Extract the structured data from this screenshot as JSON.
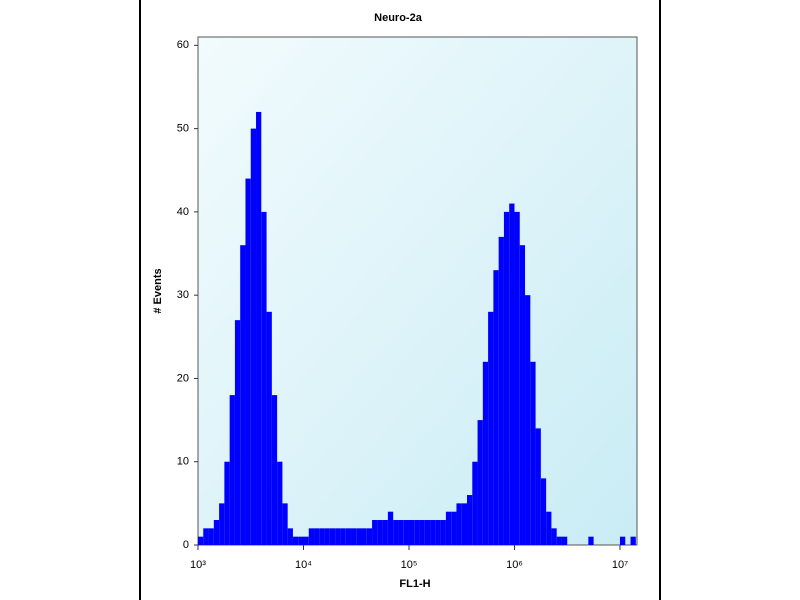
{
  "chart_data": {
    "type": "histogram",
    "title": "Neuro-2a",
    "x_label": "FL1-H",
    "y_label": "# Events",
    "xscale": "log",
    "color": "#0000ff",
    "bins": [
      1000,
      1122,
      1259,
      1413,
      1585,
      1778,
      1995,
      2239,
      2512,
      2818,
      3162,
      3548,
      3981,
      4467,
      5012,
      5623,
      6310,
      7079,
      7943,
      8913,
      10000,
      11220,
      12590,
      14130,
      15850,
      17780,
      19950,
      22390,
      25120,
      28180,
      31620,
      35480,
      39810,
      44670,
      50120,
      56230,
      63100,
      70790,
      79430,
      89130,
      100000,
      112200,
      125900,
      141300,
      158500,
      177800,
      199500,
      223900,
      251200,
      281800,
      316200,
      354800,
      398100,
      446700,
      501200,
      562300,
      631000,
      707900,
      794300,
      891300,
      1000000,
      1122000,
      1259000,
      1413000,
      1585000,
      1778000,
      1995000,
      2239000,
      2512000,
      2818000,
      3162000,
      3548000,
      3981000,
      4467000,
      5012000,
      5623000,
      6310000,
      7079000,
      7943000,
      8913000,
      10000000,
      11220000,
      12590000,
      14130000
    ],
    "counts": [
      1,
      2,
      2,
      3,
      5,
      10,
      18,
      27,
      36,
      44,
      50,
      52,
      40,
      28,
      18,
      10,
      5,
      2,
      1,
      1,
      1,
      2,
      2,
      2,
      2,
      2,
      2,
      2,
      2,
      2,
      2,
      2,
      2,
      3,
      3,
      3,
      4,
      3,
      3,
      3,
      3,
      3,
      3,
      3,
      3,
      3,
      3,
      4,
      4,
      5,
      5,
      6,
      10,
      15,
      22,
      28,
      33,
      37,
      40,
      41,
      40,
      36,
      30,
      22,
      14,
      8,
      4,
      2,
      1,
      1,
      0,
      0,
      0,
      0,
      1,
      0,
      0,
      0,
      0,
      0,
      1,
      0,
      1
    ],
    "xlim": [
      1000,
      14500000
    ],
    "xticks": [
      {
        "value": 1000,
        "label": "10³"
      },
      {
        "value": 10000,
        "label": "10⁴"
      },
      {
        "value": 100000,
        "label": "10⁵"
      },
      {
        "value": 1000000,
        "label": "10⁶"
      },
      {
        "value": 10000000,
        "label": "10⁷"
      }
    ],
    "ylim": [
      0,
      61
    ],
    "yticks": [
      0,
      10,
      20,
      30,
      40,
      50,
      60
    ]
  }
}
